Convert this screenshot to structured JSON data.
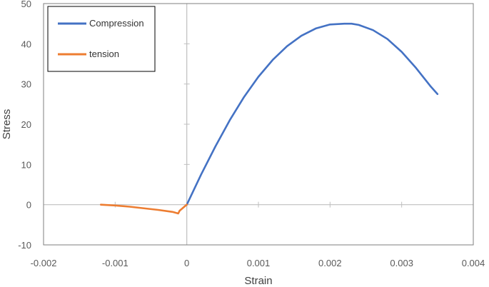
{
  "chart_data": {
    "type": "line",
    "xlabel": "Strain",
    "ylabel": "Stress",
    "xlim": [
      -0.002,
      0.004
    ],
    "ylim": [
      -10,
      50
    ],
    "x_ticks": [
      -0.002,
      -0.001,
      0,
      0.001,
      0.002,
      0.003,
      0.004
    ],
    "x_tick_labels": [
      "-0.002",
      "-0.001",
      "0",
      "0.001",
      "0.002",
      "0.003",
      "0.004"
    ],
    "y_ticks": [
      -10,
      0,
      10,
      20,
      30,
      40,
      50
    ],
    "y_tick_labels": [
      "-10",
      "0",
      "10",
      "20",
      "30",
      "40",
      "50"
    ],
    "grid": false,
    "legend_position": "top-left",
    "series": [
      {
        "name": "Compression",
        "color": "#4472C4",
        "x": [
          0,
          0.0002,
          0.0004,
          0.0006,
          0.0008,
          0.001,
          0.0012,
          0.0014,
          0.0016,
          0.0018,
          0.002,
          0.0022,
          0.0023,
          0.0024,
          0.0026,
          0.0028,
          0.003,
          0.0032,
          0.0034,
          0.0035
        ],
        "y": [
          0,
          7.5,
          14.5,
          21,
          26.8,
          31.8,
          36,
          39.4,
          42,
          43.8,
          44.8,
          45,
          45,
          44.7,
          43.4,
          41.2,
          38,
          34,
          29.5,
          27.5
        ]
      },
      {
        "name": "tension",
        "color": "#ED7D31",
        "x": [
          -0.0012,
          -0.001,
          -0.0008,
          -0.0006,
          -0.0004,
          -0.0002,
          -0.00012,
          -0.0001,
          0
        ],
        "y": [
          0,
          -0.2,
          -0.5,
          -0.9,
          -1.3,
          -1.8,
          -2.2,
          -1.5,
          0
        ]
      }
    ]
  }
}
